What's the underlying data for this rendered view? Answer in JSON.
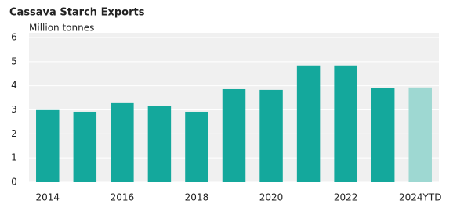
{
  "chart_data": {
    "type": "bar",
    "title": "Cassava Starch Exports",
    "y_label": "Million tonnes",
    "categories": [
      "2014",
      null,
      "2016",
      null,
      "2018",
      null,
      "2020",
      null,
      "2022",
      null,
      "2024YTD"
    ],
    "values": [
      2.99,
      2.92,
      3.28,
      3.15,
      2.92,
      3.86,
      3.83,
      4.84,
      4.84,
      3.9,
      3.93
    ],
    "colors": [
      "#14a89c",
      "#14a89c",
      "#14a89c",
      "#14a89c",
      "#14a89c",
      "#14a89c",
      "#14a89c",
      "#14a89c",
      "#14a89c",
      "#14a89c",
      "#9ed8d2"
    ],
    "ylim": [
      0,
      6
    ],
    "yticks": [
      0,
      1,
      2,
      3,
      4,
      5,
      6
    ],
    "grid": true
  }
}
